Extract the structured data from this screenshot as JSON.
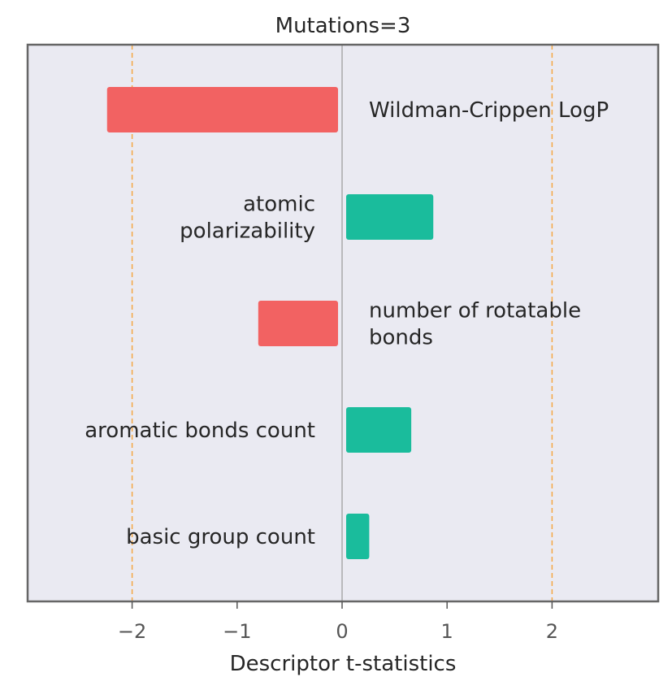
{
  "chart_data": {
    "type": "bar",
    "orientation": "horizontal",
    "title": "Mutations=3",
    "xlabel": "Descriptor t-statistics",
    "ylabel": "",
    "xlim": [
      -3.0,
      3.0
    ],
    "xticks": [
      -2,
      -1,
      0,
      1,
      2
    ],
    "xtick_labels": [
      "−2",
      "−1",
      "0",
      "1",
      "2"
    ],
    "threshold_lines": [
      -2,
      2
    ],
    "grid": false,
    "categories": [
      [
        "Wildman-Crippen LogP"
      ],
      [
        "atomic",
        "polarizability"
      ],
      [
        "number of rotatable",
        "bonds"
      ],
      [
        "aromatic bonds count"
      ],
      [
        "basic group count"
      ]
    ],
    "values": [
      -2.2,
      0.83,
      -0.76,
      0.62,
      0.22
    ],
    "colors": {
      "negative": "#f26262",
      "positive": "#1abc9c",
      "threshold": "#f5a742",
      "zero_line": "#999999",
      "plot_background": "#eaeaf2",
      "frame": "#666666"
    }
  }
}
